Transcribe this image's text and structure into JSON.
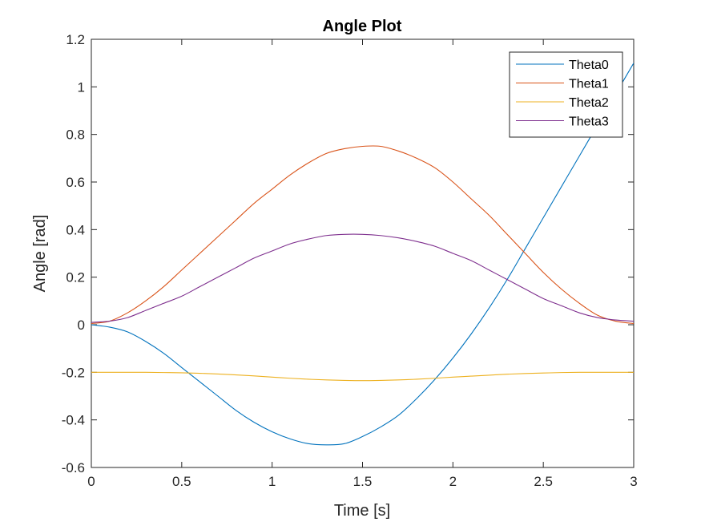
{
  "chart_data": {
    "type": "line",
    "title": "Angle Plot",
    "xlabel": "Time [s]",
    "ylabel": "Angle [rad]",
    "xlim": [
      0,
      3
    ],
    "ylim": [
      -0.6,
      1.2
    ],
    "xticks": [
      0,
      0.5,
      1,
      1.5,
      2,
      2.5,
      3
    ],
    "xtick_labels": [
      "0",
      "0.5",
      "1",
      "1.5",
      "2",
      "2.5",
      "3"
    ],
    "yticks": [
      -0.6,
      -0.4,
      -0.2,
      0,
      0.2,
      0.4,
      0.6,
      0.8,
      1.0,
      1.2
    ],
    "ytick_labels": [
      "-0.6",
      "-0.4",
      "-0.2",
      "0",
      "0.2",
      "0.4",
      "0.6",
      "0.8",
      "1",
      "1.2"
    ],
    "grid": false,
    "legend_position": "top-right",
    "x": [
      0,
      0.1,
      0.2,
      0.3,
      0.4,
      0.5,
      0.6,
      0.7,
      0.8,
      0.9,
      1.0,
      1.1,
      1.2,
      1.3,
      1.4,
      1.5,
      1.6,
      1.7,
      1.8,
      1.9,
      2.0,
      2.1,
      2.2,
      2.3,
      2.4,
      2.5,
      2.6,
      2.7,
      2.8,
      2.9,
      3.0
    ],
    "series": [
      {
        "name": "Theta0",
        "color": "#0072BD",
        "values": [
          0.0,
          -0.01,
          -0.03,
          -0.07,
          -0.12,
          -0.18,
          -0.24,
          -0.3,
          -0.36,
          -0.41,
          -0.45,
          -0.48,
          -0.5,
          -0.505,
          -0.5,
          -0.47,
          -0.43,
          -0.38,
          -0.31,
          -0.23,
          -0.14,
          -0.04,
          0.07,
          0.19,
          0.32,
          0.45,
          0.58,
          0.71,
          0.84,
          0.97,
          1.1
        ]
      },
      {
        "name": "Theta1",
        "color": "#D95319",
        "values": [
          0.005,
          0.015,
          0.05,
          0.1,
          0.16,
          0.23,
          0.3,
          0.37,
          0.44,
          0.51,
          0.57,
          0.63,
          0.68,
          0.72,
          0.74,
          0.75,
          0.75,
          0.73,
          0.7,
          0.66,
          0.6,
          0.53,
          0.46,
          0.38,
          0.3,
          0.22,
          0.15,
          0.09,
          0.04,
          0.015,
          0.005
        ]
      },
      {
        "name": "Theta2",
        "color": "#EDB120",
        "values": [
          -0.2,
          -0.2,
          -0.2,
          -0.2,
          -0.201,
          -0.202,
          -0.204,
          -0.207,
          -0.211,
          -0.215,
          -0.22,
          -0.225,
          -0.229,
          -0.232,
          -0.234,
          -0.235,
          -0.234,
          -0.232,
          -0.229,
          -0.225,
          -0.22,
          -0.216,
          -0.212,
          -0.208,
          -0.205,
          -0.203,
          -0.201,
          -0.2,
          -0.2,
          -0.2,
          -0.2
        ]
      },
      {
        "name": "Theta3",
        "color": "#7E2F8E",
        "values": [
          0.01,
          0.015,
          0.03,
          0.06,
          0.09,
          0.12,
          0.16,
          0.2,
          0.24,
          0.28,
          0.31,
          0.34,
          0.36,
          0.375,
          0.38,
          0.38,
          0.375,
          0.365,
          0.35,
          0.33,
          0.3,
          0.27,
          0.23,
          0.19,
          0.15,
          0.11,
          0.08,
          0.05,
          0.03,
          0.02,
          0.015
        ]
      }
    ]
  }
}
